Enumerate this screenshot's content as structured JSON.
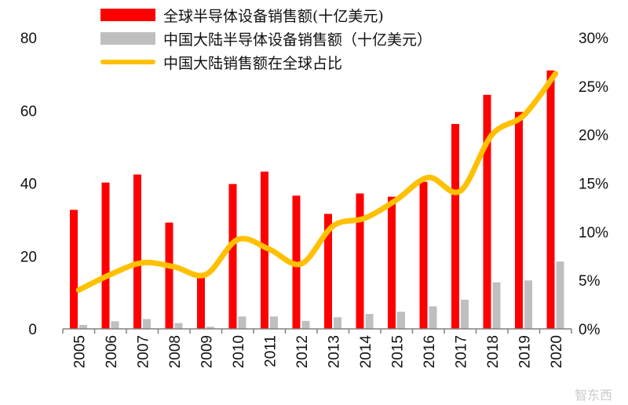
{
  "chart_data": {
    "type": "bar+line",
    "categories": [
      "2005",
      "2006",
      "2007",
      "2008",
      "2009",
      "2010",
      "2011",
      "2012",
      "2013",
      "2014",
      "2015",
      "2016",
      "2017",
      "2018",
      "2019",
      "2020"
    ],
    "series": [
      {
        "name": "全球半导体设备销售额(十亿美元)",
        "type": "bar",
        "axis": "left",
        "color": "#ff0000",
        "values": [
          32.7,
          40.2,
          42.4,
          29.2,
          15.3,
          39.8,
          43.2,
          36.6,
          31.6,
          37.2,
          36.3,
          40.4,
          56.3,
          64.3,
          59.6,
          71.0
        ]
      },
      {
        "name": "中国大陆半导体设备销售额（十亿美元）",
        "type": "bar",
        "axis": "left",
        "color": "#bfbfbf",
        "values": [
          1.1,
          2.1,
          2.7,
          1.6,
          0.6,
          3.4,
          3.4,
          2.2,
          3.2,
          4.1,
          4.7,
          6.2,
          8.0,
          12.8,
          13.3,
          18.5
        ]
      },
      {
        "name": "中国大陆销售额在全球占比",
        "type": "line",
        "axis": "right",
        "color": "#ffc000",
        "values": [
          4.0,
          5.6,
          6.8,
          6.4,
          5.6,
          9.2,
          8.2,
          6.7,
          10.6,
          11.4,
          13.3,
          15.6,
          14.2,
          20.0,
          22.0,
          26.3
        ]
      }
    ],
    "left_axis": {
      "ylim": [
        0,
        80
      ],
      "ticks": [
        "0",
        "20",
        "40",
        "60",
        "80"
      ]
    },
    "right_axis": {
      "ylim": [
        0,
        30
      ],
      "ticks": [
        "0%",
        "5%",
        "10%",
        "15%",
        "20%",
        "25%",
        "30%"
      ]
    },
    "grid": false,
    "legend_position": "top"
  },
  "watermark": "智东西"
}
